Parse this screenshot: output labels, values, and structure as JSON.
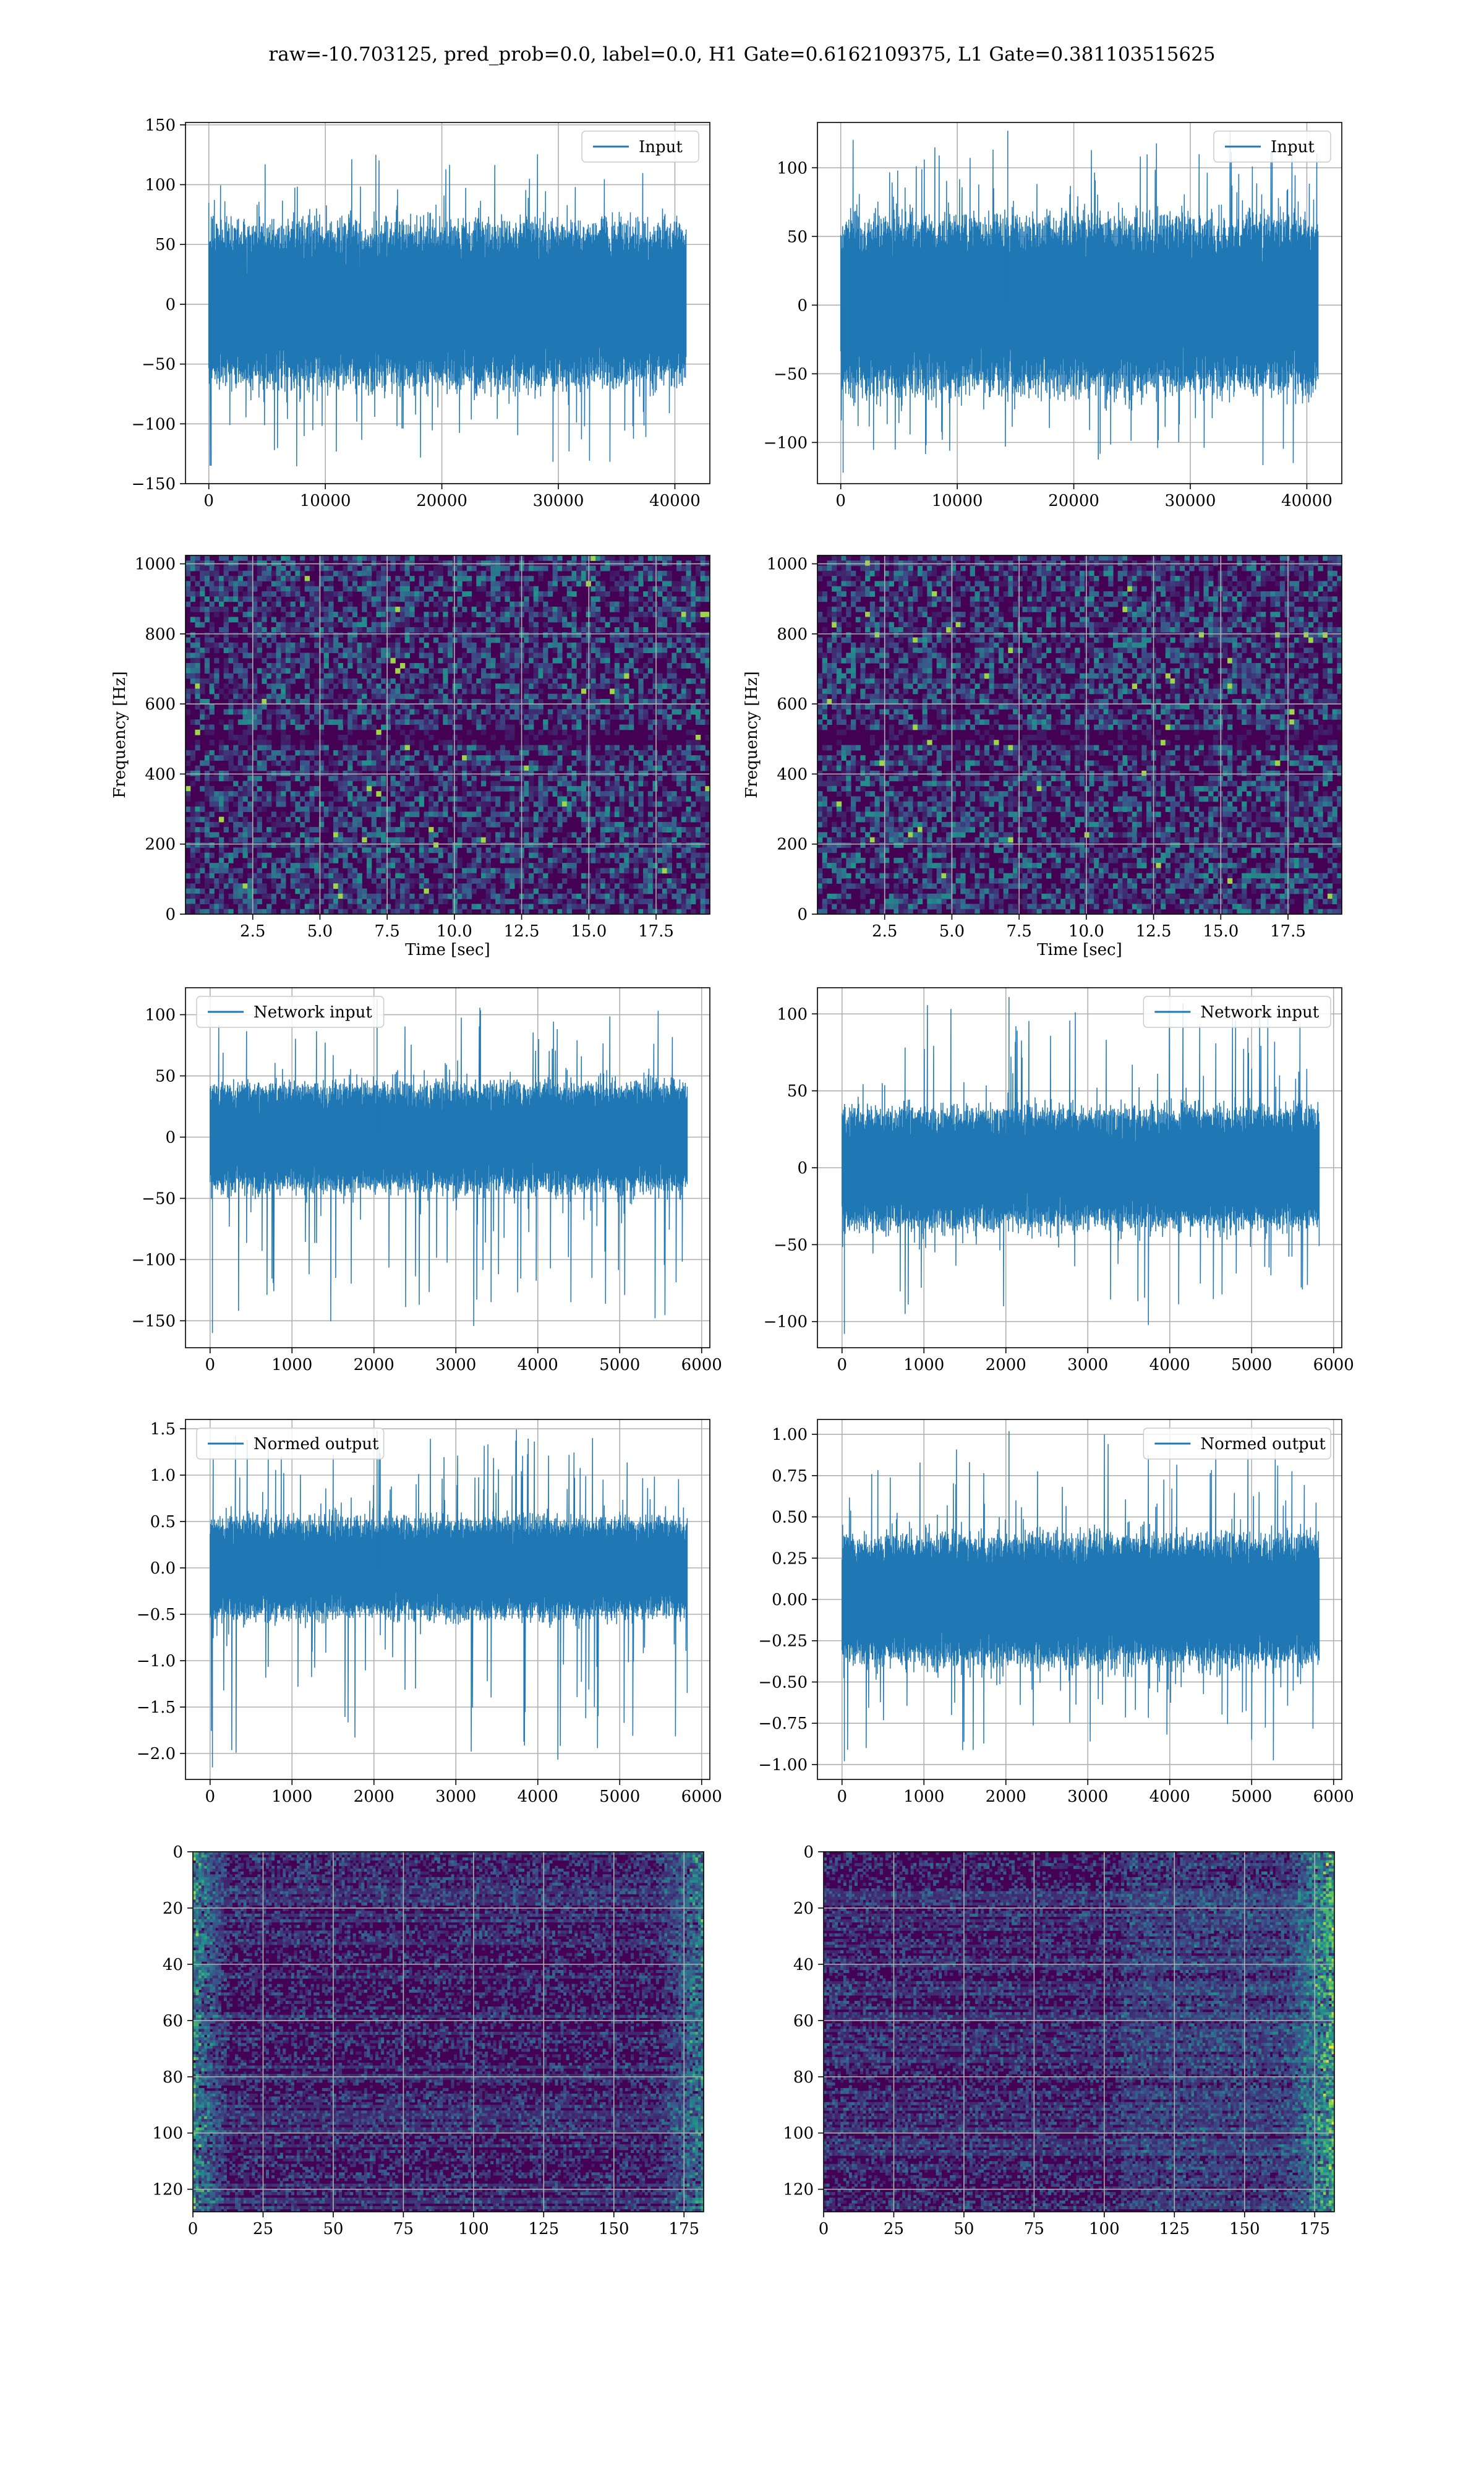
{
  "suptitle": "raw=-10.703125, pred_prob=0.0, label=0.0, H1 Gate=0.6162109375, L1 Gate=0.381103515625",
  "colors": {
    "line": "#1f77b4",
    "grid": "#b0b0b0",
    "viridis_low": "#440154",
    "viridis_mid": "#21918c",
    "viridis_high": "#fde725"
  },
  "chart_data": [
    {
      "id": "h1-input",
      "type": "line",
      "legend": "Input",
      "legend_loc": "upper-right",
      "xlim": [
        -2000,
        43000
      ],
      "ylim": [
        -150,
        152
      ],
      "xticks": [
        0,
        10000,
        20000,
        30000,
        40000
      ],
      "yticks": [
        -150,
        -100,
        -50,
        0,
        50,
        100,
        150
      ],
      "n_points": 40960,
      "x_range": [
        0,
        40960
      ],
      "envelope": {
        "typical_band": [
          -70,
          70
        ],
        "max": 125,
        "min": -135
      },
      "grid": true
    },
    {
      "id": "l1-input",
      "type": "line",
      "legend": "Input",
      "legend_loc": "upper-right",
      "xlim": [
        -2000,
        43000
      ],
      "ylim": [
        -130,
        133
      ],
      "xticks": [
        0,
        10000,
        20000,
        30000,
        40000
      ],
      "yticks": [
        -100,
        -50,
        0,
        50,
        100
      ],
      "n_points": 40960,
      "x_range": [
        0,
        40960
      ],
      "envelope": {
        "typical_band": [
          -65,
          65
        ],
        "max": 127,
        "min": -122
      },
      "grid": true
    },
    {
      "id": "h1-spectrogram",
      "type": "heatmap",
      "xlabel": "Time [sec]",
      "ylabel": "Frequency [Hz]",
      "xlim": [
        0,
        19.5
      ],
      "ylim": [
        0,
        1024
      ],
      "xticks": [
        2.5,
        5.0,
        7.5,
        10.0,
        12.5,
        15.0,
        17.5
      ],
      "yticks": [
        0,
        200,
        400,
        600,
        800,
        1000
      ],
      "colormap": "viridis",
      "grid": true
    },
    {
      "id": "l1-spectrogram",
      "type": "heatmap",
      "xlabel": "Time [sec]",
      "ylabel": "Frequency [Hz]",
      "xlim": [
        0,
        19.5
      ],
      "ylim": [
        0,
        1024
      ],
      "xticks": [
        2.5,
        5.0,
        7.5,
        10.0,
        12.5,
        15.0,
        17.5
      ],
      "yticks": [
        0,
        200,
        400,
        600,
        800,
        1000
      ],
      "colormap": "viridis",
      "grid": true
    },
    {
      "id": "h1-network-input",
      "type": "line",
      "legend": "Network input",
      "legend_loc": "upper-left",
      "xlim": [
        -300,
        6100
      ],
      "ylim": [
        -172,
        122
      ],
      "xticks": [
        0,
        1000,
        2000,
        3000,
        4000,
        5000,
        6000
      ],
      "yticks": [
        -150,
        -100,
        -50,
        0,
        50,
        100
      ],
      "n_points": 5824,
      "x_range": [
        0,
        5824
      ],
      "envelope": {
        "typical_band": [
          -45,
          45
        ],
        "max": 113,
        "min": -160
      },
      "grid": true
    },
    {
      "id": "l1-network-input",
      "type": "line",
      "legend": "Network input",
      "legend_loc": "upper-right",
      "xlim": [
        -300,
        6100
      ],
      "ylim": [
        -117,
        117
      ],
      "xticks": [
        0,
        1000,
        2000,
        3000,
        4000,
        5000,
        6000
      ],
      "yticks": [
        -100,
        -50,
        0,
        50,
        100
      ],
      "n_points": 5824,
      "x_range": [
        0,
        5824
      ],
      "envelope": {
        "typical_band": [
          -40,
          40
        ],
        "max": 111,
        "min": -108
      },
      "grid": true
    },
    {
      "id": "h1-normed-output",
      "type": "line",
      "legend": "Normed output",
      "legend_loc": "upper-left",
      "xlim": [
        -300,
        6100
      ],
      "ylim": [
        -2.28,
        1.6
      ],
      "xticks": [
        0,
        1000,
        2000,
        3000,
        4000,
        5000,
        6000
      ],
      "yticks": [
        -2.0,
        -1.5,
        -1.0,
        -0.5,
        0.0,
        0.5,
        1.0,
        1.5
      ],
      "n_points": 5824,
      "x_range": [
        0,
        5824
      ],
      "envelope": {
        "typical_band": [
          -0.55,
          0.55
        ],
        "max": 1.48,
        "min": -2.15
      },
      "grid": true
    },
    {
      "id": "l1-normed-output",
      "type": "line",
      "legend": "Normed output",
      "legend_loc": "upper-right",
      "xlim": [
        -300,
        6100
      ],
      "ylim": [
        -1.09,
        1.09
      ],
      "xticks": [
        0,
        1000,
        2000,
        3000,
        4000,
        5000,
        6000
      ],
      "yticks": [
        -1.0,
        -0.75,
        -0.5,
        -0.25,
        0.0,
        0.25,
        0.5,
        0.75,
        1.0
      ],
      "n_points": 5824,
      "x_range": [
        0,
        5824
      ],
      "envelope": {
        "typical_band": [
          -0.4,
          0.4
        ],
        "max": 1.02,
        "min": -0.98
      },
      "grid": true
    },
    {
      "id": "h1-features",
      "type": "heatmap",
      "xlim": [
        0,
        182
      ],
      "ylim": [
        128,
        0
      ],
      "xticks": [
        0,
        25,
        50,
        75,
        100,
        125,
        150,
        175
      ],
      "yticks": [
        0,
        20,
        40,
        60,
        80,
        100,
        120
      ],
      "colormap": "viridis",
      "grid": true
    },
    {
      "id": "l1-features",
      "type": "heatmap",
      "xlim": [
        0,
        182
      ],
      "ylim": [
        128,
        0
      ],
      "xticks": [
        0,
        25,
        50,
        75,
        100,
        125,
        150,
        175
      ],
      "yticks": [
        0,
        20,
        40,
        60,
        80,
        100,
        120
      ],
      "colormap": "viridis",
      "grid": true
    }
  ]
}
